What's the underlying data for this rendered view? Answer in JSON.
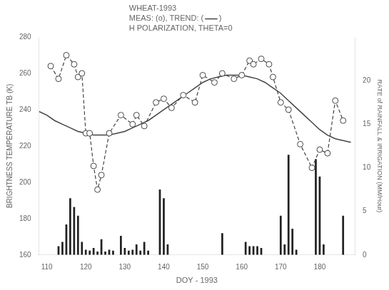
{
  "chart_data": {
    "type": "line",
    "annotations": [
      "WHEAT-1993",
      "MEAS: (o), TREND: (       )",
      "H POLARIZATION, THETA=0"
    ],
    "xlabel": "DOY - 1993",
    "ylabel": "BRIGHTNESS TEMPERATURE TB (K)",
    "y2label": "RATE of RAINFALL & IRRIGATION (MM/Hour)",
    "xlim": [
      108,
      189
    ],
    "xticks": [
      110,
      120,
      130,
      140,
      150,
      160,
      170,
      180
    ],
    "ylim": [
      160,
      280
    ],
    "yticks": [
      160,
      180,
      200,
      220,
      240,
      260,
      280
    ],
    "y2lim": [
      0,
      25
    ],
    "y2ticks": [
      0,
      5,
      10,
      15,
      20
    ],
    "grid": false,
    "series": [
      {
        "type": "bar",
        "axis": "y2",
        "color": "#222222",
        "x": [
          113,
          114,
          115,
          116,
          117,
          118,
          119,
          120,
          121,
          122,
          123,
          124,
          125,
          126,
          127,
          129,
          130,
          131,
          132,
          133,
          134,
          135,
          136,
          139,
          140,
          141,
          155,
          161,
          162,
          163,
          164,
          165,
          170,
          171,
          172,
          173,
          174,
          179,
          180,
          181,
          186
        ],
        "values": [
          1.0,
          1.5,
          3.5,
          6.5,
          5.5,
          4.5,
          1.5,
          0.6,
          0.5,
          0.8,
          0.4,
          1.8,
          0.4,
          0.6,
          0.5,
          2.2,
          0.8,
          0.5,
          0.6,
          1.2,
          0.5,
          1.5,
          0.5,
          7.5,
          6.5,
          1.2,
          2.5,
          1.5,
          1.0,
          1.0,
          1.0,
          0.8,
          4.5,
          1.2,
          11.5,
          3.0,
          0.6,
          11.0,
          9.0,
          1.2,
          4.5
        ]
      },
      {
        "type": "line",
        "color": "#444444",
        "line_style": "solid",
        "marker": "none",
        "x": [
          108,
          110,
          112,
          114,
          116,
          118,
          120,
          122,
          124,
          126,
          128,
          130,
          132,
          134,
          136,
          138,
          140,
          142,
          144,
          146,
          148,
          150,
          152,
          154,
          156,
          158,
          160,
          162,
          164,
          166,
          168,
          170,
          172,
          174,
          176,
          178,
          180,
          182,
          184,
          186,
          188
        ],
        "values": [
          239,
          237,
          234,
          232,
          230,
          228,
          227,
          226,
          226,
          226,
          227,
          228,
          230,
          232,
          234,
          237,
          240,
          243,
          246,
          249,
          252,
          255,
          257,
          258,
          259,
          259,
          259,
          258,
          257,
          255,
          252,
          249,
          245,
          241,
          237,
          233,
          229,
          226,
          224,
          223,
          222
        ]
      },
      {
        "type": "line",
        "color": "#444444",
        "line_style": "dashed",
        "marker": "circle",
        "x": [
          111,
          113,
          115,
          117,
          118,
          119,
          120,
          121,
          122,
          123,
          124,
          126,
          129,
          132,
          133,
          135,
          138,
          140,
          142,
          145,
          148,
          150,
          153,
          155,
          158,
          160,
          162,
          163,
          165,
          167,
          168,
          170,
          172,
          175,
          178,
          180,
          182,
          184,
          186
        ],
        "values": [
          264,
          257,
          270,
          265,
          258,
          260,
          227,
          227,
          209,
          196,
          204,
          227,
          237,
          232,
          237,
          231,
          244,
          246,
          241,
          248,
          244,
          259,
          255,
          260,
          257,
          259,
          267,
          265,
          268,
          265,
          258,
          244,
          240,
          221,
          208,
          218,
          216,
          245,
          234
        ]
      }
    ]
  }
}
